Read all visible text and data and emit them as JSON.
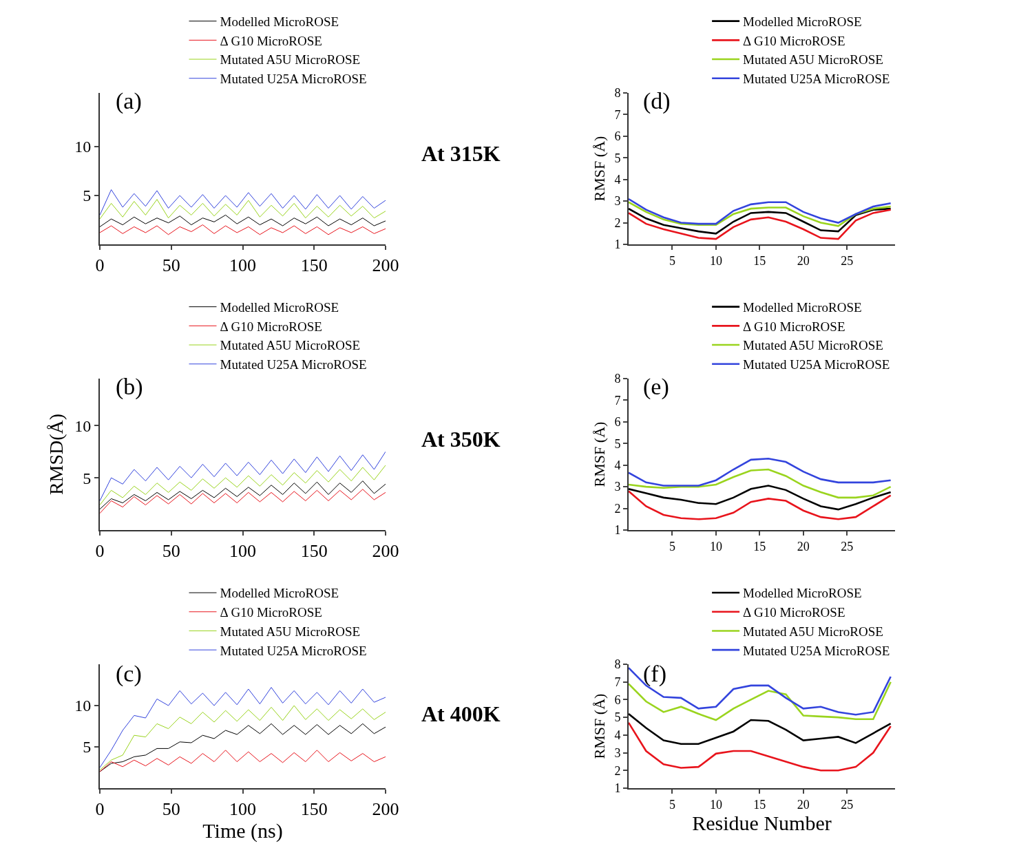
{
  "chart_data": [
    {
      "type": "line",
      "x": [
        0,
        8,
        16,
        24,
        32,
        40,
        48,
        56,
        64,
        72,
        80,
        88,
        96,
        104,
        112,
        120,
        128,
        136,
        144,
        152,
        160,
        168,
        176,
        184,
        192,
        200
      ],
      "xlim": [
        0,
        200
      ],
      "xticks": [
        0,
        50,
        100,
        150,
        200
      ],
      "ylim": [
        0,
        15.5
      ],
      "yticks": [
        5,
        10
      ],
      "legend": "top right",
      "annotations": [
        "(a)",
        "At 315K"
      ],
      "series": [
        {
          "name": "Modelled MicroROSE",
          "color": "#000000",
          "values": [
            1.8,
            2.6,
            2.0,
            2.8,
            2.1,
            2.7,
            2.2,
            2.9,
            2.0,
            2.7,
            2.3,
            3.0,
            2.1,
            2.8,
            2.0,
            2.6,
            1.9,
            2.7,
            2.1,
            2.8,
            1.9,
            2.6,
            2.0,
            2.7,
            1.9,
            2.4
          ]
        },
        {
          "name": "Δ G10 MicroROSE",
          "color": "#e8141c",
          "values": [
            1.2,
            1.9,
            1.1,
            1.8,
            1.2,
            1.9,
            1.0,
            1.8,
            1.3,
            2.0,
            1.1,
            1.9,
            1.2,
            1.8,
            1.0,
            1.7,
            1.2,
            1.9,
            1.1,
            1.8,
            1.0,
            1.7,
            1.2,
            1.8,
            1.1,
            1.6
          ]
        },
        {
          "name": "Mutated A5U MicroROSE",
          "color": "#9ad41e",
          "values": [
            2.6,
            4.2,
            2.8,
            4.4,
            3.0,
            4.6,
            2.7,
            4.0,
            3.0,
            4.2,
            2.9,
            4.1,
            3.0,
            4.5,
            2.8,
            4.0,
            2.9,
            4.2,
            2.7,
            3.9,
            2.8,
            4.0,
            2.9,
            3.9,
            2.7,
            3.4
          ]
        },
        {
          "name": "Mutated U25A MicroROSE",
          "color": "#3344dd",
          "values": [
            3.0,
            5.6,
            3.8,
            5.2,
            3.9,
            5.5,
            3.7,
            5.0,
            3.8,
            5.1,
            3.7,
            5.0,
            3.8,
            5.3,
            3.9,
            5.2,
            3.7,
            5.0,
            3.6,
            5.1,
            3.7,
            5.0,
            3.6,
            4.9,
            3.7,
            4.5
          ]
        }
      ]
    },
    {
      "type": "line",
      "x": [
        0,
        2,
        4,
        6,
        8,
        10,
        12,
        14,
        16,
        18,
        20,
        22,
        24,
        26,
        28,
        30
      ],
      "xlim": [
        0,
        30.5
      ],
      "xticks": [
        5,
        10,
        15,
        20,
        25
      ],
      "ylim": [
        1,
        8
      ],
      "yticks": [
        1,
        2,
        3,
        4,
        5,
        6,
        7,
        8
      ],
      "ylabel": "RMSF (Å)",
      "legend": "top right",
      "annotations": [
        "(d)"
      ],
      "series": [
        {
          "name": "Modelled MicroROSE",
          "color": "#000000",
          "values": [
            2.65,
            2.2,
            1.9,
            1.75,
            1.6,
            1.5,
            2.05,
            2.45,
            2.5,
            2.45,
            2.05,
            1.65,
            1.6,
            2.35,
            2.6,
            2.65
          ]
        },
        {
          "name": "Δ G10 MicroROSE",
          "color": "#e8141c",
          "values": [
            2.45,
            1.95,
            1.7,
            1.5,
            1.3,
            1.25,
            1.8,
            2.15,
            2.25,
            2.05,
            1.7,
            1.3,
            1.25,
            2.1,
            2.45,
            2.6
          ]
        },
        {
          "name": "Mutated A5U MicroROSE",
          "color": "#9ad41e",
          "values": [
            2.95,
            2.5,
            2.15,
            1.95,
            1.9,
            1.9,
            2.4,
            2.65,
            2.7,
            2.7,
            2.3,
            2.0,
            1.85,
            2.4,
            2.65,
            2.75
          ]
        },
        {
          "name": "Mutated U25A MicroROSE",
          "color": "#3344dd",
          "values": [
            3.1,
            2.6,
            2.25,
            2.0,
            1.95,
            1.95,
            2.55,
            2.85,
            2.95,
            2.95,
            2.5,
            2.2,
            2.0,
            2.4,
            2.75,
            2.9
          ]
        }
      ]
    },
    {
      "type": "line",
      "x": [
        0,
        8,
        16,
        24,
        32,
        40,
        48,
        56,
        64,
        72,
        80,
        88,
        96,
        104,
        112,
        120,
        128,
        136,
        144,
        152,
        160,
        168,
        176,
        184,
        192,
        200
      ],
      "xlim": [
        0,
        200
      ],
      "xticks": [
        0,
        50,
        100,
        150,
        200
      ],
      "ylim": [
        0,
        14.5
      ],
      "yticks": [
        5,
        10
      ],
      "ylabel": "RMSD(Å)",
      "legend": "top right",
      "annotations": [
        "(b)",
        "At 350K"
      ],
      "series": [
        {
          "name": "Modelled MicroROSE",
          "color": "#000000",
          "values": [
            2.0,
            3.0,
            2.6,
            3.4,
            2.8,
            3.6,
            2.9,
            3.7,
            3.0,
            3.8,
            3.1,
            4.0,
            3.2,
            4.1,
            3.3,
            4.3,
            3.4,
            4.5,
            3.5,
            4.6,
            3.4,
            4.5,
            3.6,
            4.7,
            3.5,
            4.4
          ]
        },
        {
          "name": "Δ G10 MicroROSE",
          "color": "#e8141c",
          "values": [
            1.6,
            2.8,
            2.2,
            3.2,
            2.4,
            3.3,
            2.5,
            3.4,
            2.5,
            3.5,
            2.6,
            3.5,
            2.6,
            3.6,
            2.7,
            3.6,
            2.7,
            3.7,
            2.8,
            3.8,
            2.8,
            3.8,
            2.9,
            3.9,
            2.9,
            3.6
          ]
        },
        {
          "name": "Mutated A5U MicroROSE",
          "color": "#9ad41e",
          "values": [
            2.4,
            3.8,
            3.1,
            4.2,
            3.4,
            4.5,
            3.6,
            4.6,
            3.8,
            4.9,
            4.0,
            5.0,
            4.1,
            5.2,
            4.2,
            5.3,
            4.3,
            5.5,
            4.5,
            5.7,
            4.6,
            5.8,
            4.7,
            6.0,
            4.8,
            6.2
          ]
        },
        {
          "name": "Mutated U25A MicroROSE",
          "color": "#3344dd",
          "values": [
            2.8,
            5.0,
            4.4,
            5.8,
            4.7,
            6.0,
            4.8,
            6.1,
            5.0,
            6.3,
            5.1,
            6.4,
            5.2,
            6.5,
            5.3,
            6.7,
            5.4,
            6.8,
            5.5,
            7.0,
            5.6,
            7.1,
            5.7,
            7.2,
            5.8,
            7.5
          ]
        }
      ]
    },
    {
      "type": "line",
      "x": [
        0,
        2,
        4,
        6,
        8,
        10,
        12,
        14,
        16,
        18,
        20,
        22,
        24,
        26,
        28,
        30
      ],
      "xlim": [
        0,
        30.5
      ],
      "xticks": [
        5,
        10,
        15,
        20,
        25
      ],
      "ylim": [
        1,
        8
      ],
      "yticks": [
        1,
        2,
        3,
        4,
        5,
        6,
        7,
        8
      ],
      "ylabel": "RMSF (Å)",
      "legend": "top right",
      "annotations": [
        "(e)"
      ],
      "series": [
        {
          "name": "Modelled MicroROSE",
          "color": "#000000",
          "values": [
            2.9,
            2.7,
            2.5,
            2.4,
            2.25,
            2.2,
            2.5,
            2.9,
            3.05,
            2.85,
            2.45,
            2.1,
            1.95,
            2.2,
            2.5,
            2.75
          ]
        },
        {
          "name": "Δ G10 MicroROSE",
          "color": "#e8141c",
          "values": [
            2.8,
            2.1,
            1.7,
            1.55,
            1.5,
            1.55,
            1.8,
            2.3,
            2.45,
            2.35,
            1.9,
            1.6,
            1.5,
            1.6,
            2.1,
            2.6
          ]
        },
        {
          "name": "Mutated A5U MicroROSE",
          "color": "#9ad41e",
          "values": [
            3.1,
            3.0,
            2.95,
            3.0,
            3.0,
            3.1,
            3.45,
            3.75,
            3.8,
            3.5,
            3.05,
            2.75,
            2.5,
            2.5,
            2.6,
            3.0
          ]
        },
        {
          "name": "Mutated U25A MicroROSE",
          "color": "#3344dd",
          "values": [
            3.65,
            3.2,
            3.05,
            3.05,
            3.05,
            3.3,
            3.8,
            4.25,
            4.3,
            4.15,
            3.7,
            3.35,
            3.2,
            3.2,
            3.2,
            3.3
          ]
        }
      ]
    },
    {
      "type": "line",
      "x": [
        0,
        8,
        16,
        24,
        32,
        40,
        48,
        56,
        64,
        72,
        80,
        88,
        96,
        104,
        112,
        120,
        128,
        136,
        144,
        152,
        160,
        168,
        176,
        184,
        192,
        200
      ],
      "xlim": [
        0,
        200
      ],
      "xticks": [
        0,
        50,
        100,
        150,
        200
      ],
      "ylim": [
        0,
        15
      ],
      "yticks": [
        5,
        10
      ],
      "xlabel": "Time (ns)",
      "legend": "top right",
      "annotations": [
        "(c)",
        "At 400K"
      ],
      "series": [
        {
          "name": "Modelled MicroROSE",
          "color": "#000000",
          "values": [
            2.0,
            3.0,
            3.2,
            3.8,
            4.0,
            4.8,
            4.8,
            5.6,
            5.5,
            6.4,
            6.0,
            7.0,
            6.5,
            7.6,
            6.6,
            7.8,
            6.5,
            7.6,
            6.5,
            7.7,
            6.5,
            7.6,
            6.6,
            7.8,
            6.6,
            7.4
          ]
        },
        {
          "name": "Δ G10 MicroROSE",
          "color": "#e8141c",
          "values": [
            2.0,
            3.2,
            2.6,
            3.4,
            2.7,
            3.6,
            2.8,
            3.8,
            3.0,
            4.2,
            3.2,
            4.6,
            3.2,
            4.4,
            3.2,
            4.2,
            3.1,
            4.3,
            3.2,
            4.6,
            3.2,
            4.3,
            3.3,
            4.2,
            3.2,
            3.8
          ]
        },
        {
          "name": "Mutated A5U MicroROSE",
          "color": "#9ad41e",
          "values": [
            2.2,
            3.4,
            4.0,
            6.4,
            6.2,
            7.8,
            7.2,
            8.6,
            7.8,
            9.2,
            8.0,
            9.4,
            8.1,
            9.5,
            8.2,
            9.8,
            8.2,
            10.0,
            8.3,
            9.6,
            8.2,
            9.5,
            8.4,
            9.6,
            8.3,
            9.2
          ]
        },
        {
          "name": "Mutated U25A MicroROSE",
          "color": "#3344dd",
          "values": [
            2.5,
            4.6,
            7.0,
            8.8,
            8.5,
            10.8,
            10.0,
            11.8,
            10.2,
            11.5,
            10.0,
            11.6,
            10.1,
            12.0,
            10.2,
            12.2,
            10.3,
            11.8,
            10.2,
            11.6,
            10.1,
            11.8,
            10.3,
            12.0,
            10.4,
            11.0
          ]
        }
      ]
    },
    {
      "type": "line",
      "x": [
        0,
        2,
        4,
        6,
        8,
        10,
        12,
        14,
        16,
        18,
        20,
        22,
        24,
        26,
        28,
        30
      ],
      "xlim": [
        0,
        30.5
      ],
      "xticks": [
        5,
        10,
        15,
        20,
        25
      ],
      "ylim": [
        1,
        8
      ],
      "yticks": [
        1,
        2,
        3,
        4,
        5,
        6,
        7,
        8
      ],
      "ylabel": "RMSF (Å)",
      "xlabel": "Residue Number",
      "legend": "top right",
      "annotations": [
        "(f)"
      ],
      "series": [
        {
          "name": "Modelled MicroROSE",
          "color": "#000000",
          "values": [
            5.2,
            4.4,
            3.7,
            3.5,
            3.5,
            3.85,
            4.2,
            4.85,
            4.8,
            4.3,
            3.7,
            3.8,
            3.9,
            3.55,
            4.1,
            4.65
          ]
        },
        {
          "name": "Δ G10 MicroROSE",
          "color": "#e8141c",
          "values": [
            4.7,
            3.1,
            2.35,
            2.15,
            2.2,
            2.95,
            3.1,
            3.1,
            2.8,
            2.5,
            2.2,
            2.0,
            2.0,
            2.2,
            3.0,
            4.5
          ]
        },
        {
          "name": "Mutated A5U MicroROSE",
          "color": "#9ad41e",
          "values": [
            6.9,
            5.9,
            5.3,
            5.6,
            5.2,
            4.85,
            5.5,
            6.0,
            6.5,
            6.3,
            5.1,
            5.05,
            5.0,
            4.9,
            4.9,
            7.0
          ]
        },
        {
          "name": "Mutated U25A MicroROSE",
          "color": "#3344dd",
          "values": [
            7.8,
            6.8,
            6.15,
            6.1,
            5.5,
            5.6,
            6.6,
            6.8,
            6.8,
            6.1,
            5.5,
            5.6,
            5.3,
            5.15,
            5.3,
            7.3
          ]
        }
      ]
    }
  ]
}
